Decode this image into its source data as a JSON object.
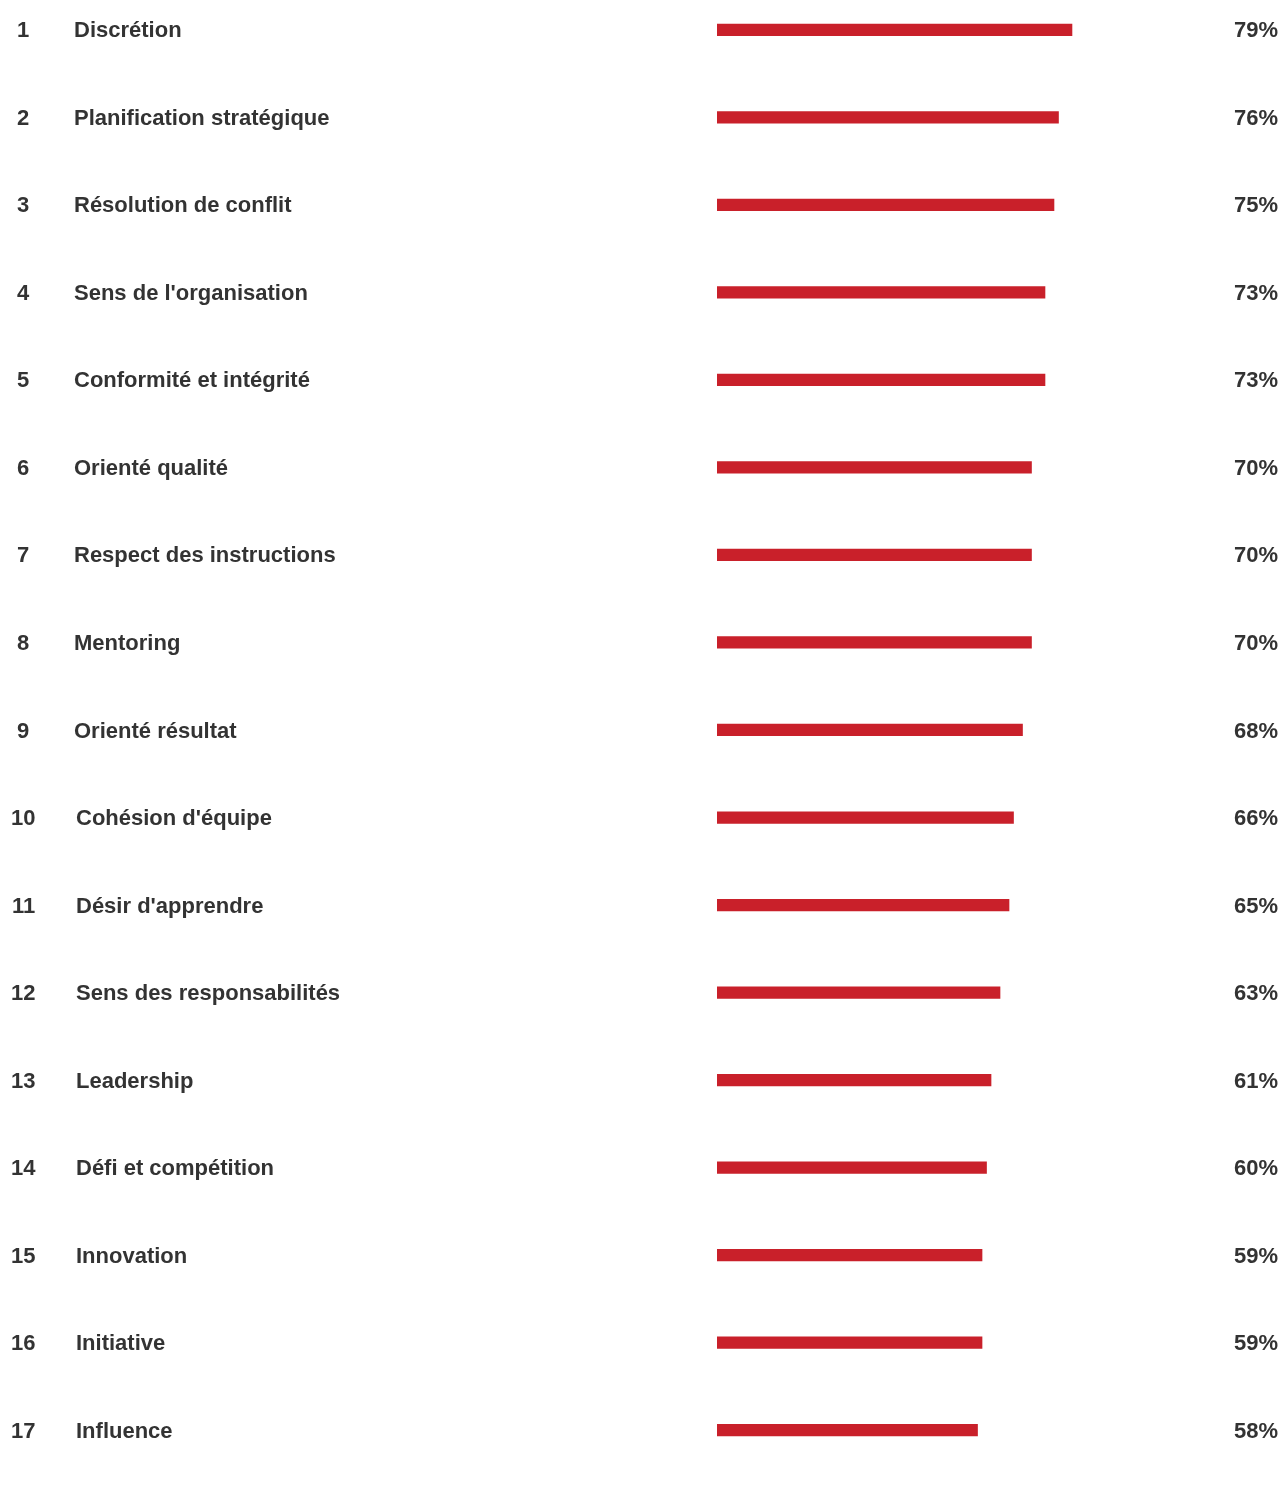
{
  "chart_data": {
    "type": "bar",
    "orientation": "horizontal",
    "categories": [
      "1 Discrétion",
      "2 Planification stratégique",
      "3 Résolution de conflit",
      "4 Sens de l'organisation",
      "5 Conformité et intégrité",
      "6 Orienté qualité",
      "7 Respect des instructions",
      "8 Mentoring",
      "9 Orienté résultat",
      "10 Cohésion d'équipe",
      "11 Désir d'apprendre",
      "12 Sens des responsabilités",
      "13 Leadership",
      "14 Défi et compétition",
      "15 Innovation",
      "16 Initiative",
      "17 Influence"
    ],
    "values": [
      79,
      76,
      75,
      73,
      73,
      70,
      70,
      70,
      68,
      66,
      65,
      63,
      61,
      60,
      59,
      59,
      58
    ],
    "value_labels": [
      "79%",
      "76%",
      "75%",
      "73%",
      "73%",
      "70%",
      "70%",
      "70%",
      "68%",
      "66%",
      "65%",
      "63%",
      "61%",
      "60%",
      "59%",
      "59%",
      "58%"
    ],
    "color": "#c9202a",
    "legend": false
  }
}
